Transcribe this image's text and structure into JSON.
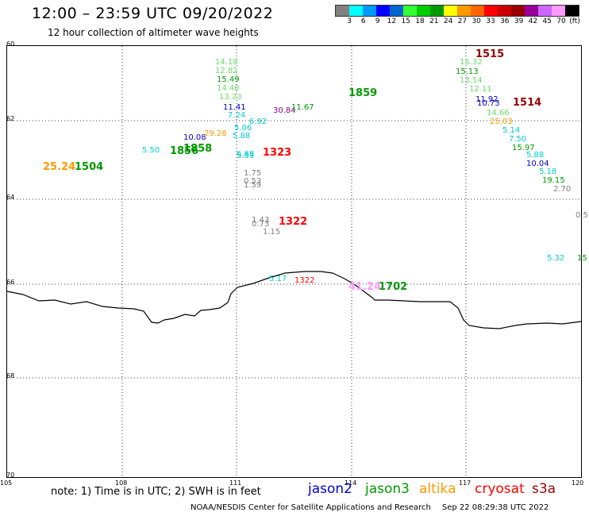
{
  "header": {
    "title": "12:00 – 23:59 UTC 09/20/2022",
    "subtitle": "12 hour collection of altimeter wave heights"
  },
  "legend": {
    "unit": "(ft)",
    "colors": [
      "#808080",
      "#00ffff",
      "#0099ff",
      "#0000ff",
      "#0066cc",
      "#33ff33",
      "#00cc00",
      "#009900",
      "#ffff00",
      "#ff9900",
      "#ff6600",
      "#ff0000",
      "#cc0000",
      "#990000",
      "#990099",
      "#cc66ff",
      "#ff99ff",
      "#000000"
    ],
    "labels": [
      "3",
      "6",
      "9",
      "12",
      "15",
      "18",
      "21",
      "24",
      "27",
      "30",
      "33",
      "36",
      "39",
      "42",
      "45",
      "70"
    ]
  },
  "axes": {
    "lat_labels": [
      "60",
      "62",
      "64",
      "66",
      "68",
      "70"
    ],
    "lon_labels": [
      "105",
      "108",
      "111",
      "114",
      "117",
      "120"
    ]
  },
  "map_labels": [
    {
      "text": "14.18",
      "color": "#66dd66"
    },
    {
      "text": "12.82",
      "color": "#66dd66"
    },
    {
      "text": "15.49",
      "color": "#009900"
    },
    {
      "text": "14.40",
      "color": "#66dd66"
    },
    {
      "text": "13.23",
      "color": "#66dd66"
    },
    {
      "text": "11.41",
      "color": "#0000cc"
    },
    {
      "text": "7.24",
      "color": "#00cccc"
    },
    {
      "text": "6.92",
      "color": "#00cccc"
    },
    {
      "text": "5.06",
      "color": "#00cccc"
    },
    {
      "text": "5.88",
      "color": "#00cccc"
    },
    {
      "text": "6.88",
      "color": "#00cccc"
    },
    {
      "text": "5.53",
      "color": "#00cccc"
    },
    {
      "text": "10.08",
      "color": "#0000cc"
    },
    {
      "text": "29.28",
      "color": "#ff9900"
    },
    {
      "text": "5.50",
      "color": "#00cccc"
    },
    {
      "text": "1856",
      "color": "#009900"
    },
    {
      "text": "1858",
      "color": "#009900"
    },
    {
      "text": "25.24",
      "color": "#ff9900"
    },
    {
      "text": "1504",
      "color": "#009900"
    },
    {
      "text": "30.84",
      "color": "#880088"
    },
    {
      "text": "11.67",
      "color": "#009900"
    },
    {
      "text": "1323",
      "color": "#ff0000"
    },
    {
      "text": "1.75",
      "color": "#808080"
    },
    {
      "text": "0.53",
      "color": "#808080"
    },
    {
      "text": "1.59",
      "color": "#808080"
    },
    {
      "text": "1.43",
      "color": "#808080"
    },
    {
      "text": "0.73",
      "color": "#808080"
    },
    {
      "text": "1.15",
      "color": "#808080"
    },
    {
      "text": "1322",
      "color": "#ff0000"
    },
    {
      "text": "1859",
      "color": "#009900"
    },
    {
      "text": "1515",
      "color": "#990000"
    },
    {
      "text": "15.32",
      "color": "#66dd66"
    },
    {
      "text": "15.13",
      "color": "#009900"
    },
    {
      "text": "13.14",
      "color": "#66dd66"
    },
    {
      "text": "12.11",
      "color": "#66dd66"
    },
    {
      "text": "11.92",
      "color": "#0000cc"
    },
    {
      "text": "10.73",
      "color": "#0000cc"
    },
    {
      "text": "1514",
      "color": "#990000"
    },
    {
      "text": "14.66",
      "color": "#66dd66"
    },
    {
      "text": "25.03",
      "color": "#ff9900"
    },
    {
      "text": "5.14",
      "color": "#00cccc"
    },
    {
      "text": "7.50",
      "color": "#00cccc"
    },
    {
      "text": "15.97",
      "color": "#009900"
    },
    {
      "text": "5.88",
      "color": "#00cccc"
    },
    {
      "text": "10.04",
      "color": "#0000cc"
    },
    {
      "text": "5.18",
      "color": "#00cccc"
    },
    {
      "text": "19.15",
      "color": "#009900"
    },
    {
      "text": "2.70",
      "color": "#808080"
    },
    {
      "text": "0.5",
      "color": "#808080"
    },
    {
      "text": "5.32",
      "color": "#00cccc"
    },
    {
      "text": "15",
      "color": "#009900"
    },
    {
      "text": "5.17",
      "color": "#00cccc"
    },
    {
      "text": "1322",
      "color": "#ff0000"
    },
    {
      "text": "41.24",
      "color": "#ff99ff"
    },
    {
      "text": "1702",
      "color": "#009900"
    }
  ],
  "notes": {
    "text": "note:  1) Time is in UTC;  2) SWH is in feet"
  },
  "satellites": [
    {
      "name": "jason2",
      "color": "#0000cc"
    },
    {
      "name": "jason3",
      "color": "#009900"
    },
    {
      "name": "altika",
      "color": "#ff9900"
    },
    {
      "name": "cryosat",
      "color": "#ff0000"
    },
    {
      "name": "s3a",
      "color": "#990000"
    }
  ],
  "footer": {
    "credit": "NOAA/NESDIS Center for Satellite Applications and Research",
    "timestamp": "Sep 22 08:29:38 UTC 2022"
  }
}
